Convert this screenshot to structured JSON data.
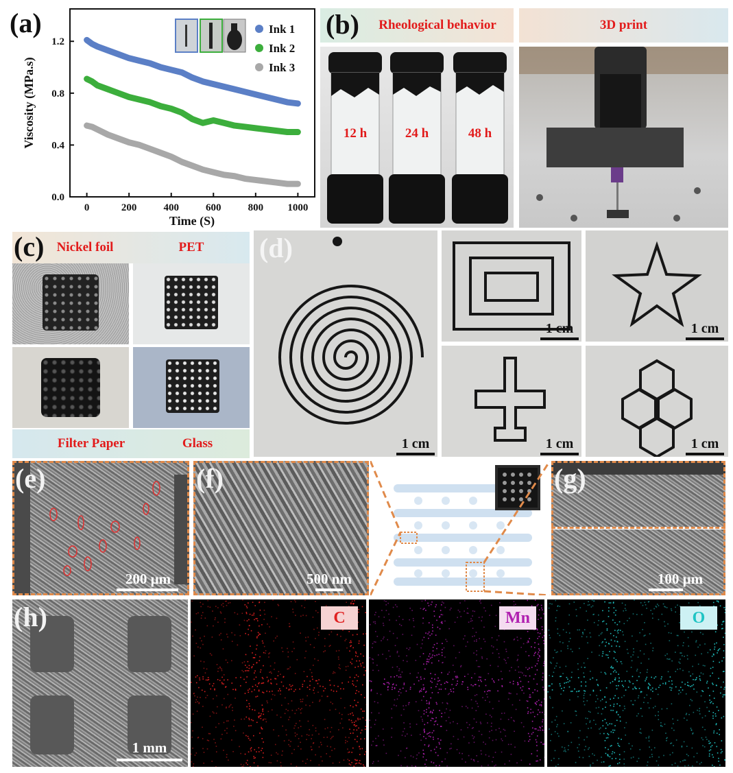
{
  "panels": {
    "a": {
      "label": "(a)"
    },
    "b": {
      "label": "(b)",
      "header_left": "Rheological behavior",
      "header_right": "3D print",
      "vials": [
        "12 h",
        "24 h",
        "48 h"
      ]
    },
    "c": {
      "label": "(c)",
      "substrates": [
        "Nickel foil",
        "PET",
        "Filter Paper",
        "Glass"
      ]
    },
    "d": {
      "label": "(d)",
      "scale": "1 cm"
    },
    "e": {
      "label": "(e)",
      "scale": "200 µm"
    },
    "f": {
      "label": "(f)",
      "scale": "500 nm"
    },
    "g": {
      "label": "(g)",
      "scale": "100 µm"
    },
    "h": {
      "label": "(h)",
      "scale": "1 mm",
      "elements": [
        "C",
        "Mn",
        "O"
      ]
    }
  },
  "colors": {
    "ink1": "#5b7fc6",
    "ink2": "#3cae3c",
    "ink3": "#a8a8a8",
    "label_red": "#e21b1b",
    "dash_orange": "#e08a4a",
    "C": "#e02020",
    "Mn": "#b020b0",
    "O": "#20c4c4"
  },
  "chart_data": {
    "type": "scatter",
    "xlabel": "Time (S)",
    "ylabel": "Viscosity (MPa.s)",
    "xlim": [
      -80,
      1080
    ],
    "ylim": [
      0,
      1.45
    ],
    "xticks": [
      0,
      200,
      400,
      600,
      800,
      1000
    ],
    "yticks": [
      0.0,
      0.4,
      0.8,
      1.2
    ],
    "legend": "top-right",
    "series": [
      {
        "name": "Ink 1",
        "x": [
          0,
          25,
          50,
          100,
          150,
          200,
          250,
          300,
          350,
          400,
          450,
          500,
          550,
          600,
          650,
          700,
          750,
          800,
          850,
          900,
          950,
          1000
        ],
        "y": [
          1.21,
          1.18,
          1.16,
          1.13,
          1.1,
          1.07,
          1.05,
          1.03,
          1.0,
          0.98,
          0.96,
          0.92,
          0.89,
          0.87,
          0.85,
          0.83,
          0.81,
          0.79,
          0.77,
          0.75,
          0.73,
          0.72
        ]
      },
      {
        "name": "Ink 2",
        "x": [
          0,
          25,
          50,
          100,
          150,
          200,
          250,
          300,
          350,
          400,
          450,
          500,
          550,
          600,
          650,
          700,
          750,
          800,
          850,
          900,
          950,
          1000
        ],
        "y": [
          0.91,
          0.89,
          0.86,
          0.83,
          0.8,
          0.77,
          0.75,
          0.73,
          0.7,
          0.68,
          0.65,
          0.6,
          0.57,
          0.59,
          0.57,
          0.55,
          0.54,
          0.53,
          0.52,
          0.51,
          0.5,
          0.5
        ]
      },
      {
        "name": "Ink 3",
        "x": [
          0,
          25,
          50,
          100,
          150,
          200,
          250,
          300,
          350,
          400,
          450,
          500,
          550,
          600,
          650,
          700,
          750,
          800,
          850,
          900,
          950,
          1000
        ],
        "y": [
          0.55,
          0.54,
          0.52,
          0.48,
          0.45,
          0.42,
          0.4,
          0.37,
          0.34,
          0.31,
          0.27,
          0.24,
          0.21,
          0.19,
          0.17,
          0.16,
          0.14,
          0.13,
          0.12,
          0.11,
          0.1,
          0.1
        ]
      }
    ]
  }
}
